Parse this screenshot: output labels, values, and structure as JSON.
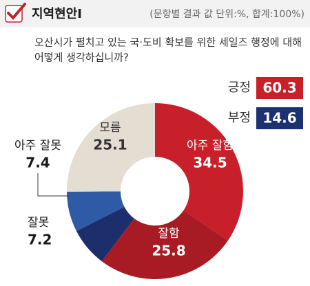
{
  "header": {
    "title": "지역현안Ⅰ",
    "subtitle": "(문항별 결과 값 단위:%, 합계:100%)"
  },
  "question": [
    "오산시가 펼치고 있는 국·도비 확보를 위한 세일즈 행정에 대해",
    "어떻게 생각하십니까?"
  ],
  "summary": [
    {
      "label": "긍정",
      "value": 60.3,
      "color": "#c8202a"
    },
    {
      "label": "부정",
      "value": 14.6,
      "color": "#1c3170"
    }
  ],
  "chart_data": {
    "type": "pie",
    "donut": true,
    "categories": [
      "아주 잘함",
      "잘함",
      "잘못",
      "아주 잘못",
      "모름"
    ],
    "values": [
      34.5,
      25.8,
      7.2,
      7.4,
      25.1
    ],
    "colors": [
      "#c8202a",
      "#a91b24",
      "#1c2f6c",
      "#2e5aa6",
      "#e4ddd1"
    ]
  }
}
